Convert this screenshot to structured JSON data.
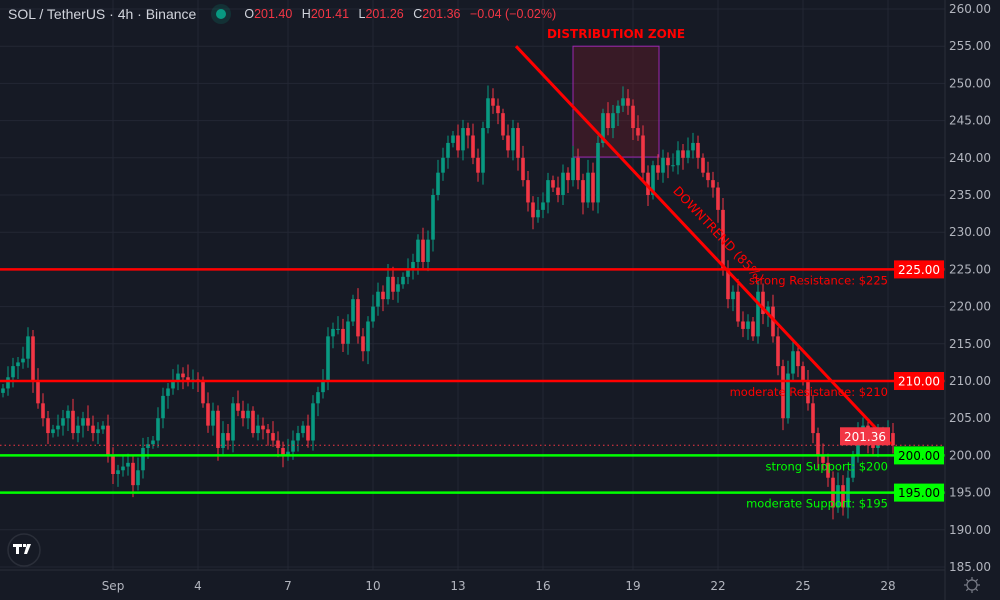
{
  "header": {
    "symbol": "SOL / TetherUS · 4h · Binance",
    "o_label": "O",
    "o": "201.40",
    "h_label": "H",
    "h": "201.41",
    "l_label": "L",
    "l": "201.26",
    "c_label": "C",
    "c": "201.36",
    "change": "−0.04 (−0.02%)"
  },
  "colors": {
    "background": "#161a25",
    "grid": "#232734",
    "up": "#089981",
    "down": "#f23645",
    "resistance": "#ff0000",
    "support": "#00ff00",
    "zone": "#9c27b0"
  },
  "chart_data": {
    "type": "candlestick",
    "title": "SOL / TetherUS · 4h · Binance",
    "ylim": [
      185,
      260
    ],
    "y_ticks": [
      "185.00",
      "190.00",
      "195.00",
      "200.00",
      "205.00",
      "210.00",
      "215.00",
      "220.00",
      "225.00",
      "230.00",
      "235.00",
      "240.00",
      "245.00",
      "250.00",
      "255.00",
      "260.00"
    ],
    "x_ticks": [
      {
        "label": "Sep",
        "candle": 22
      },
      {
        "label": "4",
        "candle": 39
      },
      {
        "label": "7",
        "candle": 57
      },
      {
        "label": "10",
        "candle": 74
      },
      {
        "label": "13",
        "candle": 91
      },
      {
        "label": "16",
        "candle": 108
      },
      {
        "label": "19",
        "candle": 126
      },
      {
        "label": "22",
        "candle": 143
      },
      {
        "label": "25",
        "candle": 160
      },
      {
        "label": "28",
        "candle": 177
      }
    ],
    "close": [
      209,
      210.5,
      212,
      212.5,
      213,
      216,
      210,
      207,
      205,
      203,
      203.5,
      204,
      205,
      206,
      203,
      204,
      205,
      204,
      203,
      203.5,
      204,
      200,
      197.5,
      198,
      198.5,
      199,
      196,
      198,
      201,
      201.5,
      202,
      205,
      208,
      209,
      210,
      211,
      210.5,
      210,
      210.2,
      210,
      207,
      204,
      206,
      201,
      203,
      202,
      207,
      206,
      205,
      206,
      203,
      204,
      203.5,
      203,
      202,
      201,
      200,
      200.5,
      202,
      203,
      204,
      202,
      207,
      208.5,
      210,
      216,
      217,
      217,
      215,
      218,
      221,
      216,
      214,
      218,
      220,
      222,
      221,
      224,
      222,
      223,
      224,
      225,
      226,
      229,
      226,
      229,
      235,
      238,
      240,
      242,
      243,
      241,
      244,
      243,
      240,
      238,
      244,
      248,
      247,
      246,
      243,
      241,
      244,
      240,
      237,
      234,
      232,
      233,
      234,
      237,
      236,
      235,
      238,
      237,
      240,
      237,
      234,
      238,
      234,
      242,
      246,
      244,
      246,
      247,
      248,
      247,
      244,
      243,
      238,
      235,
      239,
      238,
      240,
      239,
      239,
      241,
      240,
      241,
      242,
      240,
      238,
      237,
      236,
      233,
      225,
      221,
      222,
      218,
      217,
      218,
      216,
      222,
      219,
      220,
      216,
      212,
      205,
      211,
      214,
      212,
      210,
      207,
      203,
      200,
      199,
      197,
      193,
      196,
      193,
      197,
      200,
      203,
      204,
      202,
      201,
      203,
      203,
      203,
      201.36
    ],
    "current_price": {
      "value": 201.36,
      "label": "201.36"
    },
    "levels": [
      {
        "price": 225,
        "kind": "resistance",
        "axis_label": "225.00",
        "text": "strong Resistance: $225"
      },
      {
        "price": 210,
        "kind": "resistance",
        "axis_label": "210.00",
        "text": "moderate Resistance: $210"
      },
      {
        "price": 200,
        "kind": "support",
        "axis_label": "200.00",
        "text": "strong Support: $200"
      },
      {
        "price": 195,
        "kind": "support",
        "axis_label": "195.00",
        "text": "moderate Support: $195"
      }
    ],
    "trendline": {
      "label": "DOWNTREND (85%)",
      "start": {
        "candle": 103,
        "price": 255
      },
      "end": {
        "candle": 178,
        "price": 201.5
      }
    },
    "zone": {
      "label": "DISTRIBUTION ZONE",
      "candle_from": 114.4,
      "candle_to": 131.6,
      "price_from": 240.1,
      "price_to": 255
    }
  }
}
